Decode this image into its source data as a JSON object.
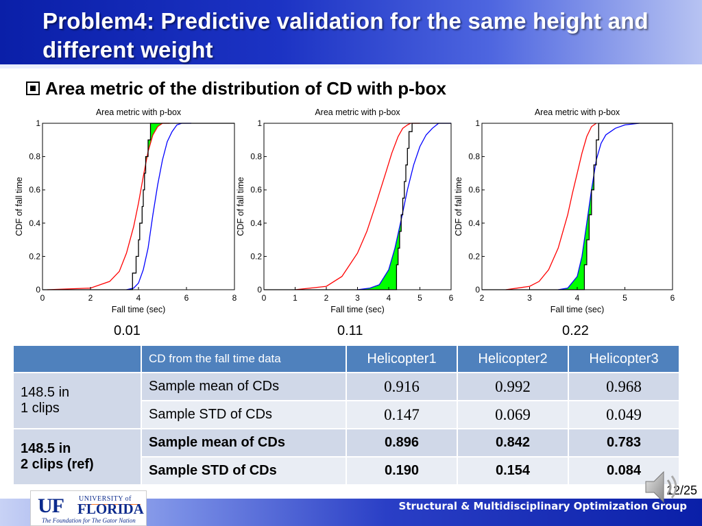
{
  "slide": {
    "title": "Problem4: Predictive validation for the same height and different weight",
    "subtitle": "Area metric of the distribution of CD with p-box",
    "footer_text": "Structural & Multidisciplinary Optimization Group",
    "page_number": "12/25",
    "logo": {
      "letters": "UF",
      "line1": "UNIVERSITY of",
      "line2": "FLORIDA",
      "tagline": "The Foundation for The Gator Nation"
    },
    "colors": {
      "title_bar": "#1c33c4",
      "lower_bound": "#ff0000",
      "upper_bound": "#0000ff",
      "data_cdf": "#000000",
      "area_fill": "#00ff00",
      "table_header": "#4f81bd"
    },
    "icons": [
      "speaker-icon",
      "bullet-square-icon"
    ]
  },
  "chart_data": [
    {
      "type": "line",
      "title": "Area metric with p-box",
      "xlabel": "Fall time (sec)",
      "ylabel": "CDF of fall time",
      "xlim": [
        0,
        8
      ],
      "ylim": [
        0,
        1
      ],
      "xticks": [
        0,
        2,
        4,
        6,
        8
      ],
      "yticks": [
        0,
        0.2,
        0.4,
        0.6,
        0.8,
        1
      ],
      "ytick_labels": [
        "0",
        "0.2",
        "0.4",
        "0.6",
        "0.8",
        "1"
      ],
      "area_metric": "0.01",
      "grid": false,
      "series": [
        {
          "role": "lower-bound",
          "color": "#ff0000",
          "x": [
            0.2,
            2.0,
            2.8,
            3.2,
            3.5,
            3.8,
            4.0,
            4.2,
            4.4,
            4.6,
            4.8,
            5.0,
            5.3
          ],
          "y": [
            0.0,
            0.01,
            0.05,
            0.11,
            0.22,
            0.38,
            0.52,
            0.68,
            0.83,
            0.93,
            0.98,
            1.0,
            1.0
          ]
        },
        {
          "role": "upper-bound",
          "color": "#0000ff",
          "x": [
            3.5,
            3.8,
            4.0,
            4.2,
            4.4,
            4.6,
            4.8,
            5.0,
            5.2,
            5.4,
            5.6,
            5.8,
            6.2
          ],
          "y": [
            0.0,
            0.01,
            0.04,
            0.12,
            0.25,
            0.45,
            0.63,
            0.78,
            0.89,
            0.95,
            0.99,
            1.0,
            1.0
          ]
        },
        {
          "role": "data-cdf",
          "color": "#000000",
          "step": true,
          "x": [
            3.5,
            3.75,
            3.9,
            4.0,
            4.05,
            4.15,
            4.2,
            4.25,
            4.3,
            4.4,
            4.5
          ],
          "y": [
            0.0,
            0.1,
            0.2,
            0.3,
            0.4,
            0.5,
            0.6,
            0.7,
            0.8,
            0.9,
            1.0
          ]
        }
      ]
    },
    {
      "type": "line",
      "title": "Area metric with p-box",
      "xlabel": "Fall time (sec)",
      "ylabel": "CDF of fall time",
      "xlim": [
        0,
        6
      ],
      "ylim": [
        0,
        1
      ],
      "xticks": [
        0,
        1,
        2,
        3,
        4,
        5,
        6
      ],
      "yticks": [
        0,
        0.2,
        0.4,
        0.6,
        0.8,
        1
      ],
      "ytick_labels": [
        "0",
        "0.2",
        "0.4",
        "0.6",
        "0.8",
        "1"
      ],
      "area_metric": "0.11",
      "grid": false,
      "series": [
        {
          "role": "lower-bound",
          "color": "#ff0000",
          "x": [
            1.0,
            2.0,
            2.5,
            3.0,
            3.3,
            3.6,
            3.9,
            4.1,
            4.3,
            4.45,
            4.6,
            4.7,
            5.0
          ],
          "y": [
            0.0,
            0.02,
            0.08,
            0.22,
            0.35,
            0.52,
            0.7,
            0.82,
            0.92,
            0.97,
            0.99,
            1.0,
            1.0
          ]
        },
        {
          "role": "upper-bound",
          "color": "#0000ff",
          "x": [
            3.0,
            3.4,
            3.7,
            4.0,
            4.2,
            4.4,
            4.6,
            4.8,
            5.0,
            5.2,
            5.4,
            5.6,
            6.0
          ],
          "y": [
            0.0,
            0.01,
            0.03,
            0.12,
            0.25,
            0.42,
            0.6,
            0.75,
            0.86,
            0.93,
            0.97,
            1.0,
            1.0
          ]
        },
        {
          "role": "data-cdf",
          "color": "#000000",
          "step": true,
          "x": [
            4.2,
            4.25,
            4.3,
            4.35,
            4.4,
            4.45,
            4.5,
            4.55,
            4.6,
            4.65,
            4.75
          ],
          "y": [
            0.0,
            0.15,
            0.25,
            0.35,
            0.45,
            0.55,
            0.65,
            0.75,
            0.85,
            0.95,
            1.0
          ]
        }
      ]
    },
    {
      "type": "line",
      "title": "Area metric with p-box",
      "xlabel": "Fall time (sec)",
      "ylabel": "CDF of fall time",
      "xlim": [
        2,
        6
      ],
      "ylim": [
        0,
        1
      ],
      "xticks": [
        2,
        3,
        4,
        5,
        6
      ],
      "yticks": [
        0,
        0.2,
        0.4,
        0.6,
        0.8,
        1
      ],
      "ytick_labels": [
        "0",
        "0.2",
        "0.4",
        "0.6",
        "0.8",
        "1"
      ],
      "area_metric": "0.22",
      "grid": false,
      "series": [
        {
          "role": "lower-bound",
          "color": "#ff0000",
          "x": [
            2.5,
            3.0,
            3.2,
            3.4,
            3.6,
            3.8,
            3.9,
            4.0,
            4.1,
            4.2,
            4.3,
            4.4
          ],
          "y": [
            0.0,
            0.02,
            0.05,
            0.12,
            0.25,
            0.45,
            0.58,
            0.7,
            0.82,
            0.92,
            0.98,
            1.0
          ]
        },
        {
          "role": "upper-bound",
          "color": "#0000ff",
          "x": [
            3.6,
            3.8,
            4.0,
            4.1,
            4.2,
            4.3,
            4.4,
            4.5,
            4.6,
            4.8,
            5.0,
            5.3
          ],
          "y": [
            0.0,
            0.01,
            0.08,
            0.2,
            0.4,
            0.6,
            0.78,
            0.88,
            0.93,
            0.97,
            0.99,
            1.0
          ]
        },
        {
          "role": "data-cdf",
          "color": "#000000",
          "step": true,
          "x": [
            4.05,
            4.15,
            4.2,
            4.25,
            4.3,
            4.35,
            4.4,
            4.45
          ],
          "y": [
            0.0,
            0.15,
            0.3,
            0.45,
            0.6,
            0.75,
            0.9,
            1.0
          ]
        }
      ]
    }
  ],
  "table": {
    "header": [
      "",
      "CD from the fall time data",
      "Helicopter1",
      "Helicopter2",
      "Helicopter3"
    ],
    "groups": [
      {
        "label_line1": "148.5 in",
        "label_line2": "1 clips",
        "rows": [
          {
            "label": "Sample mean of CDs",
            "values": [
              "0.916",
              "0.992",
              "0.968"
            ]
          },
          {
            "label": "Sample STD of CDs",
            "values": [
              "0.147",
              "0.069",
              "0.049"
            ]
          }
        ]
      },
      {
        "label_line1": "148.5 in",
        "label_line2": "2 clips (ref)",
        "rows": [
          {
            "label": "Sample mean of CDs",
            "values": [
              "0.896",
              "0.842",
              "0.783"
            ]
          },
          {
            "label": "Sample STD of CDs",
            "values": [
              "0.190",
              "0.154",
              "0.084"
            ]
          }
        ]
      }
    ]
  }
}
